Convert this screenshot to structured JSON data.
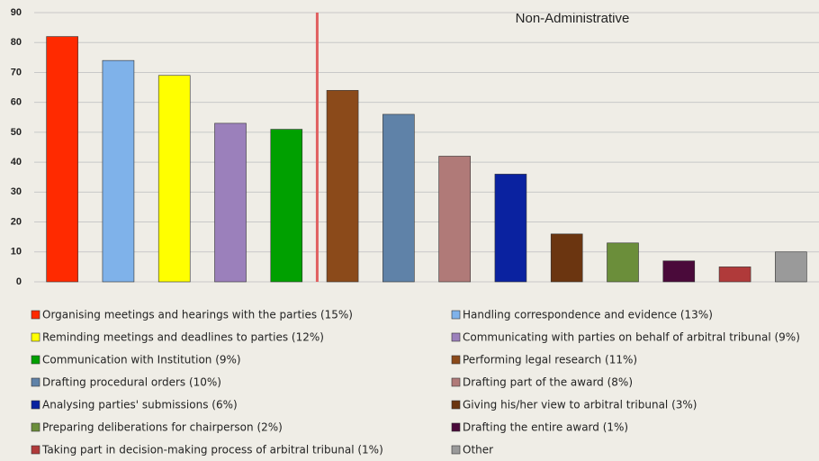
{
  "chart_data": {
    "type": "bar",
    "annotation": "Non-Administrative",
    "categories": [
      "Organising meetings and hearings with the parties (15%)",
      "Handling correspondence and evidence (13%)",
      "Reminding meetings and deadlines to parties (12%)",
      "Communicating with parties on behalf of arbitral tribunal (9%)",
      "Communication with Institution (9%)",
      "Performing legal research (11%)",
      "Drafting procedural orders (10%)",
      "Drafting part of the award (8%)",
      "Analysing parties' submissions (6%)",
      "Giving his/her view to arbitral tribunal (3%)",
      "Preparing deliberations for chairperson (2%)",
      "Drafting the entire award (1%)",
      "Taking part in decision-making process of arbitral tribunal (1%)",
      "Other"
    ],
    "values": [
      82,
      74,
      69,
      53,
      51,
      64,
      56,
      42,
      36,
      16,
      13,
      7,
      5,
      10
    ],
    "colors": [
      "#ff2a00",
      "#7fb2ea",
      "#ffff00",
      "#9b80bb",
      "#00a000",
      "#8b4a1a",
      "#5f82a8",
      "#b07a78",
      "#0a22a0",
      "#6b3510",
      "#6b8e3a",
      "#4a0a3a",
      "#b03a3a",
      "#9a9a9a"
    ],
    "ylim": [
      0,
      90
    ],
    "yticks": [
      0,
      10,
      20,
      30,
      40,
      50,
      60,
      70,
      80,
      90
    ],
    "grid": true
  }
}
